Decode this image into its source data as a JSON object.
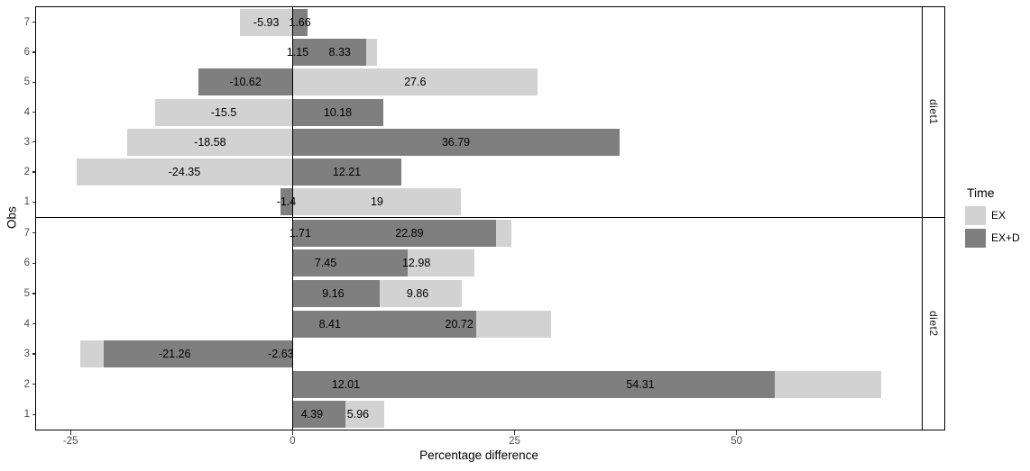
{
  "chart_data": {
    "type": "bar",
    "orientation": "horizontal",
    "stacking": "stacked",
    "title": "",
    "xlabel": "Percentage difference",
    "ylabel": "Obs",
    "x_ticks": [
      -25,
      0,
      25,
      50
    ],
    "xlim": [
      -28.88,
      70.85
    ],
    "zero_reference_line": 0,
    "grid": "off",
    "legend": {
      "title": "Time",
      "position": "right",
      "entries": [
        {
          "label": "EX",
          "color": "#d2d2d2"
        },
        {
          "label": "EX+D",
          "color": "#7f7f7f"
        }
      ]
    },
    "facets": [
      {
        "label": "diet1",
        "rows": [
          {
            "obs": "7",
            "EX": -5.93,
            "EXD": 1.66
          },
          {
            "obs": "6",
            "EX": 1.15,
            "EXD": 8.33
          },
          {
            "obs": "5",
            "EX": 27.6,
            "EXD": -10.62
          },
          {
            "obs": "4",
            "EX": -15.5,
            "EXD": 10.18
          },
          {
            "obs": "3",
            "EX": -18.58,
            "EXD": 36.79
          },
          {
            "obs": "2",
            "EX": -24.35,
            "EXD": 12.21
          },
          {
            "obs": "1",
            "EX": 19,
            "EXD": -1.4
          }
        ]
      },
      {
        "label": "diet2",
        "rows": [
          {
            "obs": "7",
            "EX": 1.71,
            "EXD": 22.89
          },
          {
            "obs": "6",
            "EX": 7.45,
            "EXD": 12.98
          },
          {
            "obs": "5",
            "EX": 9.16,
            "EXD": 9.86
          },
          {
            "obs": "4",
            "EX": 8.41,
            "EXD": 20.72
          },
          {
            "obs": "3",
            "EX": -2.63,
            "EXD": -21.26
          },
          {
            "obs": "2",
            "EX": 12.01,
            "EXD": 54.31
          },
          {
            "obs": "1",
            "EX": 4.39,
            "EXD": 5.96
          }
        ]
      }
    ]
  },
  "colors": {
    "bar_light": "#d2d2d2",
    "bar_dark": "#7f7f7f",
    "panel_border": "#000000",
    "axis_tick_text": "#4d4d4d",
    "label_text": "#000000",
    "background": "#ffffff"
  }
}
